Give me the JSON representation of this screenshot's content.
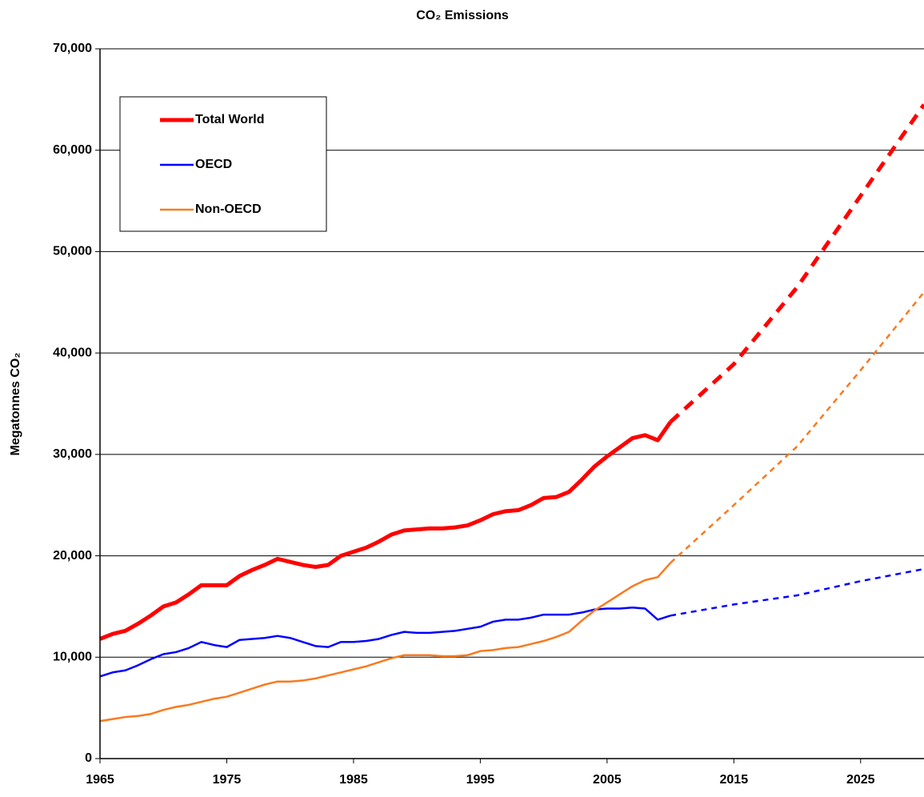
{
  "chart_data": {
    "type": "line",
    "title": "CO₂ Emissions",
    "y_label": "Megatonnes CO₂",
    "x": [
      1965,
      1966,
      1967,
      1968,
      1969,
      1970,
      1971,
      1972,
      1973,
      1974,
      1975,
      1976,
      1977,
      1978,
      1979,
      1980,
      1981,
      1982,
      1983,
      1984,
      1985,
      1986,
      1987,
      1988,
      1989,
      1990,
      1991,
      1992,
      1993,
      1994,
      1995,
      1996,
      1997,
      1998,
      1999,
      2000,
      2001,
      2002,
      2003,
      2004,
      2005,
      2006,
      2007,
      2008,
      2009,
      2010,
      2015,
      2020,
      2025,
      2030
    ],
    "series": [
      {
        "name": "Total World",
        "color": "#ff0000",
        "width": 5,
        "dashed_from": 2010,
        "values": [
          11800,
          12300,
          12600,
          13300,
          14100,
          15000,
          15400,
          16200,
          17100,
          17100,
          17100,
          18000,
          18600,
          19100,
          19700,
          19400,
          19100,
          18900,
          19100,
          20000,
          20400,
          20800,
          21400,
          22100,
          22500,
          22600,
          22700,
          22700,
          22800,
          23000,
          23500,
          24100,
          24400,
          24500,
          25000,
          25700,
          25800,
          26300,
          27500,
          28800,
          29800,
          30700,
          31600,
          31900,
          31400,
          33200,
          38900,
          46500,
          55500,
          64500
        ]
      },
      {
        "name": "OECD",
        "color": "#0000ff",
        "width": 2.5,
        "dashed_from": 2010,
        "values": [
          8100,
          8500,
          8700,
          9200,
          9800,
          10300,
          10500,
          10900,
          11500,
          11200,
          11000,
          11700,
          11800,
          11900,
          12100,
          11900,
          11500,
          11100,
          11000,
          11500,
          11500,
          11600,
          11800,
          12200,
          12500,
          12400,
          12400,
          12500,
          12600,
          12800,
          13000,
          13500,
          13700,
          13700,
          13900,
          14200,
          14200,
          14200,
          14400,
          14700,
          14800,
          14800,
          14900,
          14800,
          13700,
          14100,
          15200,
          16100,
          17500,
          18700
        ]
      },
      {
        "name": "Non-OECD",
        "color": "#f97a1f",
        "width": 2.5,
        "dashed_from": 2010,
        "values": [
          3700,
          3900,
          4100,
          4200,
          4400,
          4800,
          5100,
          5300,
          5600,
          5900,
          6100,
          6500,
          6900,
          7300,
          7600,
          7600,
          7700,
          7900,
          8200,
          8500,
          8800,
          9100,
          9500,
          9900,
          10200,
          10200,
          10200,
          10100,
          10100,
          10200,
          10600,
          10700,
          10900,
          11000,
          11300,
          11600,
          12000,
          12500,
          13600,
          14600,
          15400,
          16200,
          17000,
          17600,
          17900,
          19300,
          25000,
          30800,
          38300,
          46000
        ]
      }
    ],
    "xlim": [
      1965,
      2030
    ],
    "xticks": [
      1965,
      1975,
      1985,
      1995,
      2005,
      2015,
      2025
    ],
    "ylim": [
      0,
      70000
    ],
    "yticks": [
      0,
      {
        "value": 10000,
        "label": "10,000"
      },
      {
        "value": 20000,
        "label": "20,000"
      },
      {
        "value": 30000,
        "label": "30,000"
      },
      {
        "value": 40000,
        "label": "40,000"
      },
      {
        "value": 50000,
        "label": "50,000"
      },
      {
        "value": 60000,
        "label": "60,000"
      },
      {
        "value": 70000,
        "label": "70,000"
      }
    ],
    "grid": true,
    "legend": "upper left"
  }
}
